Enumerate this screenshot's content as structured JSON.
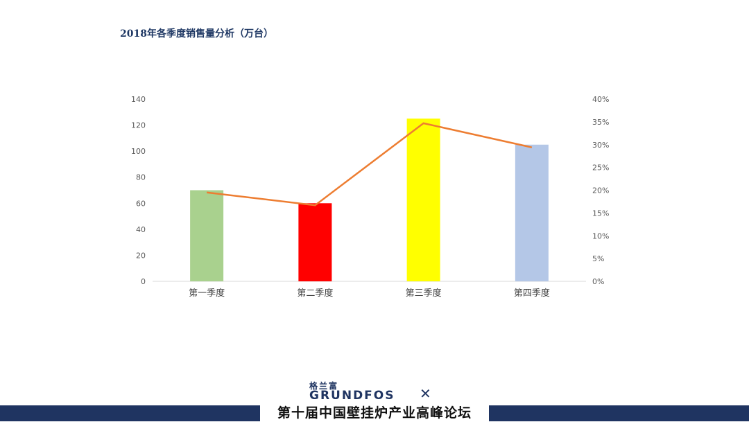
{
  "chart_data": {
    "type": "bar+line",
    "title": "2018年各季度销售量分析（万台）",
    "categories": [
      "第一季度",
      "第二季度",
      "第三季度",
      "第四季度"
    ],
    "bar_values": [
      70,
      60,
      125,
      105
    ],
    "bar_colors": [
      "#a9d18e",
      "#ff0000",
      "#ffff00",
      "#b4c7e7"
    ],
    "line_values": [
      19.5,
      16.7,
      34.7,
      29.4
    ],
    "line_color": "#ed7d31",
    "y_left": {
      "min": 0,
      "max": 140,
      "ticks": [
        "0",
        "20",
        "40",
        "60",
        "80",
        "100",
        "120",
        "140"
      ]
    },
    "y_right": {
      "min": 0,
      "max": 40,
      "ticks": [
        "0%",
        "5%",
        "10%",
        "15%",
        "20%",
        "25%",
        "30%",
        "35%",
        "40%"
      ]
    },
    "grid": false
  },
  "footer": {
    "logo_cn": "格兰富",
    "logo_en": "GRUNDFOS",
    "banner": "第十届中国壁挂炉产业高峰论坛"
  }
}
